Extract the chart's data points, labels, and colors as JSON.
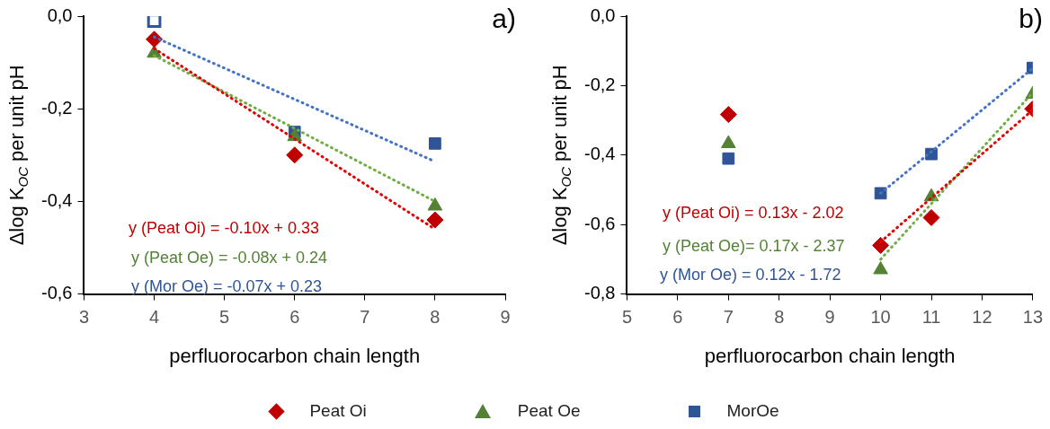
{
  "chart_data": [
    {
      "type": "scatter",
      "xlabel": "perfluorocarbon chain length",
      "ylabel": "Δlog K$_{OC}$ per unit pH",
      "x": [
        4,
        6,
        8
      ],
      "xlim": [
        3,
        9
      ],
      "xticks": [
        3,
        4,
        5,
        6,
        7,
        8,
        9
      ],
      "ylim": [
        -0.6,
        0
      ],
      "yticks": [
        {
          "value": -0.6,
          "label": "-0,6"
        },
        {
          "value": -0.4,
          "label": "-0,4"
        },
        {
          "value": -0.2,
          "label": "-0,2"
        },
        {
          "value": 0,
          "label": "0,0"
        }
      ],
      "grid": false,
      "legend": "bottom",
      "series": [
        {
          "name": "Peat Oi",
          "color": "#c00000",
          "marker": "diamond",
          "values": [
            -0.05,
            -0.3,
            -0.44
          ]
        },
        {
          "name": "Peat Oe",
          "color": "#548235",
          "marker": "triangle",
          "values": [
            -0.08,
            -0.26,
            -0.41
          ]
        },
        {
          "name": "MorOe",
          "color": "#2f5597",
          "marker": "square",
          "values": [
            null,
            -0.25,
            -0.275
          ]
        },
        {
          "color": "#2f5597",
          "marker": "square",
          "x": [
            4
          ],
          "values": [
            -0.01
          ]
        },
        {
          "type": "line",
          "color": "#e00000",
          "marker": "none",
          "line_style": "dotted",
          "x": [
            4,
            8
          ],
          "values": [
            -0.07,
            -0.46
          ]
        },
        {
          "type": "line",
          "color": "#70ad47",
          "marker": "none",
          "line_style": "dotted",
          "x": [
            4,
            8
          ],
          "values": [
            -0.085,
            -0.4
          ]
        },
        {
          "type": "line",
          "color": "#4472c4",
          "marker": "none",
          "line_style": "dotted",
          "x": [
            4,
            8
          ],
          "values": [
            -0.045,
            -0.314
          ]
        }
      ],
      "annotations": [
        "y (Peat Oi) = -0.10x + 0.33",
        "y (Peat Oe) = -0.08x + 0.24",
        "y (Mor Oe) = -0.07x + 0.23",
        "a)"
      ]
    },
    {
      "type": "scatter",
      "xlabel": "perfluorocarbon chain length",
      "ylabel": "Δlog K$_{OC}$ per unit pH",
      "x": [
        7,
        10,
        11,
        13
      ],
      "xlim": [
        5,
        13
      ],
      "xticks": [
        5,
        6,
        7,
        8,
        9,
        10,
        11,
        12,
        13
      ],
      "ylim": [
        -0.8,
        0
      ],
      "yticks": [
        {
          "value": -0.8,
          "label": "-0,8"
        },
        {
          "value": -0.6,
          "label": "-0,6"
        },
        {
          "value": -0.4,
          "label": "-0,4"
        },
        {
          "value": -0.2,
          "label": "-0,2"
        },
        {
          "value": 0,
          "label": "0,0"
        }
      ],
      "grid": false,
      "series": [
        {
          "name": "Peat Oi",
          "color": "#c00000",
          "marker": "diamond",
          "values": [
            -0.283,
            -0.66,
            -0.58,
            -0.267
          ]
        },
        {
          "name": "Peat Oe",
          "color": "#548235",
          "marker": "triangle",
          "values": [
            -0.367,
            -0.73,
            -0.52,
            -0.225
          ]
        },
        {
          "name": "MorOe",
          "color": "#2f5597",
          "marker": "square",
          "values": [
            -0.41,
            -0.51,
            -0.397,
            -0.149
          ]
        },
        {
          "type": "line",
          "color": "#e00000",
          "marker": "none",
          "line_style": "dotted",
          "x": [
            10,
            13
          ],
          "values": [
            -0.65,
            -0.27
          ]
        },
        {
          "type": "line",
          "color": "#70ad47",
          "marker": "none",
          "line_style": "dotted",
          "x": [
            10,
            13
          ],
          "values": [
            -0.7,
            -0.22
          ]
        },
        {
          "type": "line",
          "color": "#4472c4",
          "marker": "none",
          "line_style": "dotted",
          "x": [
            10,
            13
          ],
          "values": [
            -0.51,
            -0.15
          ]
        }
      ],
      "annotations": [
        "y (Peat Oi) = 0.13x - 2.02",
        "y (Peat Oe)= 0.17x - 2.37",
        "y (Mor Oe) = 0.12x - 1.72",
        "b)"
      ]
    }
  ]
}
